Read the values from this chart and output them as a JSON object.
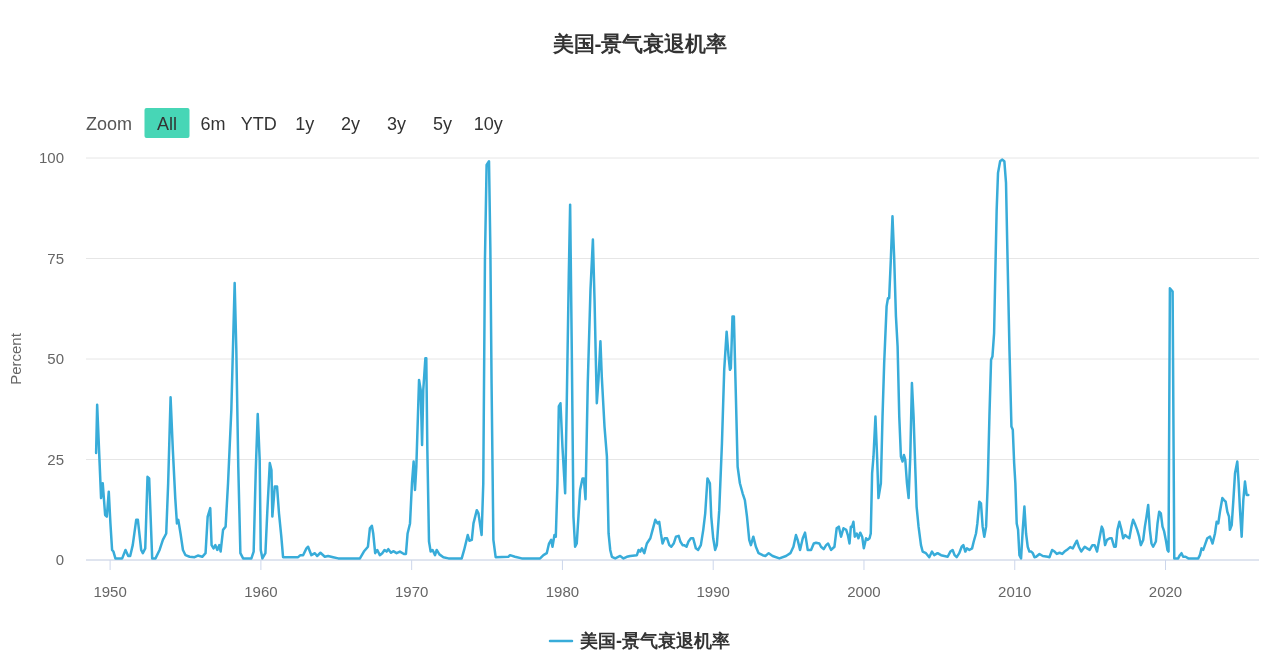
{
  "chart_data": {
    "type": "line",
    "title": "美国-景气衰退机率",
    "ylabel": "Percent",
    "annotations": [
      "Zoom",
      "All",
      "6m",
      "YTD",
      "1y",
      "2y",
      "3y",
      "5y",
      "10y"
    ],
    "xlim": [
      1948.4,
      2026.2
    ],
    "ylim": [
      0,
      100
    ],
    "xticks": [
      1950,
      1960,
      1970,
      1980,
      1990,
      2000,
      2010,
      2020
    ],
    "yticks": [
      0,
      25,
      50,
      75,
      100
    ],
    "grid": "y",
    "legend": "bottom",
    "x": [
      1949.07,
      1949.14,
      1949.4,
      1949.51,
      1949.67,
      1949.78,
      1949.91,
      1950.02,
      1950.13,
      1950.22,
      1950.35,
      1950.8,
      1951.02,
      1951.2,
      1951.33,
      1951.5,
      1951.73,
      1951.84,
      1952.06,
      1952.17,
      1952.33,
      1952.48,
      1952.59,
      1952.79,
      1953.01,
      1953.28,
      1953.5,
      1953.72,
      1953.85,
      1954.01,
      1954.16,
      1954.32,
      1954.43,
      1954.52,
      1954.67,
      1954.83,
      1955.0,
      1955.27,
      1955.6,
      1955.82,
      1956.11,
      1956.33,
      1956.47,
      1956.64,
      1956.73,
      1956.86,
      1956.98,
      1957.11,
      1957.24,
      1957.33,
      1957.49,
      1957.66,
      1957.82,
      1958.04,
      1958.26,
      1958.37,
      1958.5,
      1958.64,
      1958.82,
      1959.37,
      1959.52,
      1959.66,
      1959.79,
      1959.92,
      1959.99,
      1960.1,
      1960.3,
      1960.43,
      1960.59,
      1960.7,
      1960.76,
      1960.92,
      1961.07,
      1961.2,
      1961.35,
      1961.47,
      1962.47,
      1962.62,
      1962.8,
      1963.02,
      1963.13,
      1963.35,
      1963.58,
      1963.73,
      1963.95,
      1964.24,
      1964.46,
      1964.79,
      1965.13,
      1966.57,
      1966.83,
      1967.1,
      1967.23,
      1967.36,
      1967.45,
      1967.58,
      1967.72,
      1967.89,
      1968.05,
      1968.2,
      1968.34,
      1968.45,
      1968.63,
      1968.78,
      1969.0,
      1969.22,
      1969.49,
      1969.62,
      1969.73,
      1969.89,
      1970.02,
      1970.13,
      1970.22,
      1970.31,
      1970.49,
      1970.6,
      1970.69,
      1970.77,
      1970.91,
      1970.97,
      1971.04,
      1971.15,
      1971.26,
      1971.39,
      1971.55,
      1971.66,
      1971.84,
      1972.1,
      1972.44,
      1973.32,
      1973.48,
      1973.72,
      1973.83,
      1973.99,
      1974.1,
      1974.32,
      1974.43,
      1974.64,
      1974.75,
      1974.86,
      1974.97,
      1975.13,
      1975.22,
      1975.3,
      1975.42,
      1975.57,
      1976.41,
      1976.52,
      1976.85,
      1977.3,
      1978.52,
      1978.74,
      1978.96,
      1979.11,
      1979.25,
      1979.34,
      1979.47,
      1979.56,
      1979.67,
      1979.76,
      1979.87,
      1980.0,
      1980.18,
      1980.29,
      1980.42,
      1980.51,
      1980.62,
      1980.73,
      1980.84,
      1980.95,
      1981.17,
      1981.33,
      1981.42,
      1981.53,
      1981.68,
      1981.86,
      1982.02,
      1982.13,
      1982.21,
      1982.28,
      1982.39,
      1982.52,
      1982.61,
      1982.79,
      1982.95,
      1983.06,
      1983.17,
      1983.28,
      1983.5,
      1983.83,
      1984.05,
      1984.27,
      1984.5,
      1984.94,
      1985.05,
      1985.16,
      1985.27,
      1985.43,
      1985.6,
      1985.83,
      1985.98,
      1986.16,
      1986.31,
      1986.42,
      1986.53,
      1986.64,
      1986.78,
      1986.94,
      1987.09,
      1987.22,
      1987.38,
      1987.53,
      1987.71,
      1987.82,
      1987.97,
      1988.07,
      1988.23,
      1988.36,
      1988.52,
      1988.67,
      1988.85,
      1989.0,
      1989.18,
      1989.34,
      1989.47,
      1989.62,
      1989.78,
      1989.87,
      1990.0,
      1990.13,
      1990.24,
      1990.4,
      1990.58,
      1990.73,
      1990.89,
      1991.02,
      1991.11,
      1991.17,
      1991.28,
      1991.37,
      1991.51,
      1991.62,
      1991.77,
      1991.95,
      1992.1,
      1992.24,
      1992.39,
      1992.5,
      1992.66,
      1992.83,
      1993.01,
      1993.28,
      1993.46,
      1993.68,
      1993.94,
      1994.39,
      1994.83,
      1995.12,
      1995.32,
      1995.49,
      1995.6,
      1995.76,
      1995.94,
      1996.09,
      1996.27,
      1996.49,
      1996.67,
      1996.82,
      1997.04,
      1997.15,
      1997.33,
      1997.49,
      1997.62,
      1997.82,
      1998.04,
      1998.19,
      1998.33,
      1998.48,
      1998.64,
      1998.82,
      1998.93,
      1999.04,
      1999.13,
      1999.21,
      1999.3,
      1999.39,
      1999.52,
      1999.63,
      1999.75,
      1999.88,
      1999.99,
      2000.14,
      2000.25,
      2000.37,
      2000.45,
      2000.54,
      2000.63,
      2000.76,
      2000.87,
      2000.96,
      2001.12,
      2001.23,
      2001.34,
      2001.5,
      2001.59,
      2001.67,
      2001.78,
      2001.89,
      2002.0,
      2002.12,
      2002.23,
      2002.34,
      2002.45,
      2002.56,
      2002.65,
      2002.74,
      2002.85,
      2002.96,
      2003.07,
      2003.18,
      2003.29,
      2003.4,
      2003.49,
      2003.62,
      2003.78,
      2003.89,
      2004.11,
      2004.33,
      2004.51,
      2004.66,
      2004.88,
      2005.11,
      2005.33,
      2005.55,
      2005.73,
      2005.88,
      2006.01,
      2006.15,
      2006.32,
      2006.48,
      2006.59,
      2006.72,
      2006.83,
      2006.99,
      2007.17,
      2007.28,
      2007.43,
      2007.52,
      2007.65,
      2007.76,
      2007.87,
      2007.98,
      2008.1,
      2008.21,
      2008.32,
      2008.43,
      2008.52,
      2008.63,
      2008.72,
      2008.8,
      2008.89,
      2009.03,
      2009.16,
      2009.31,
      2009.42,
      2009.51,
      2009.65,
      2009.78,
      2009.87,
      2009.96,
      2010.04,
      2010.13,
      2010.22,
      2010.31,
      2010.42,
      2010.53,
      2010.64,
      2010.75,
      2010.86,
      2010.97,
      2011.09,
      2011.2,
      2011.31,
      2011.42,
      2011.64,
      2011.86,
      2012.19,
      2012.3,
      2012.48,
      2012.64,
      2012.79,
      2012.97,
      2013.15,
      2013.3,
      2013.52,
      2013.68,
      2013.85,
      2013.96,
      2014.12,
      2014.25,
      2014.41,
      2014.64,
      2014.8,
      2014.97,
      2015.15,
      2015.3,
      2015.46,
      2015.64,
      2015.77,
      2015.86,
      2015.99,
      2016.12,
      2016.3,
      2016.43,
      2016.59,
      2016.7,
      2016.81,
      2016.94,
      2017.08,
      2017.19,
      2017.32,
      2017.45,
      2017.6,
      2017.74,
      2017.85,
      2017.96,
      2018.12,
      2018.25,
      2018.36,
      2018.52,
      2018.63,
      2018.74,
      2018.85,
      2018.96,
      2019.07,
      2019.18,
      2019.36,
      2019.47,
      2019.58,
      2019.69,
      2019.8,
      2019.91,
      2020.02,
      2020.13,
      2020.2,
      2020.29,
      2020.47,
      2020.58,
      2020.84,
      2020.95,
      2021.06,
      2021.17,
      2021.33,
      2021.51,
      2022.17,
      2022.28,
      2022.39,
      2022.5,
      2022.61,
      2022.77,
      2022.95,
      2023.12,
      2023.28,
      2023.39,
      2023.5,
      2023.61,
      2023.77,
      2023.88,
      2023.99,
      2024.1,
      2024.21,
      2024.27,
      2024.39,
      2024.5,
      2024.61,
      2024.76,
      2024.85,
      2024.94,
      2025.05,
      2025.16,
      2025.27,
      2025.38,
      2025.49
    ],
    "series": [
      {
        "name": "美国-景气衰退机率",
        "color": "#38acd9",
        "values": [
          26.6,
          38.6,
          15.4,
          19.1,
          11.2,
          10.8,
          17.0,
          9.1,
          2.5,
          2.1,
          0.4,
          0.4,
          2.5,
          1.0,
          1.0,
          3.7,
          10.0,
          10.0,
          2.5,
          1.7,
          2.9,
          20.7,
          20.3,
          0.4,
          0.4,
          2.5,
          5.0,
          6.6,
          19.1,
          40.5,
          27.4,
          15.4,
          9.1,
          10.0,
          6.6,
          2.5,
          1.2,
          0.8,
          0.7,
          1.1,
          0.8,
          1.7,
          10.8,
          12.9,
          3.7,
          2.9,
          3.7,
          2.5,
          3.7,
          2.1,
          7.5,
          8.3,
          19.1,
          37.3,
          68.9,
          52.3,
          23.2,
          1.7,
          0.4,
          0.4,
          2.1,
          22.4,
          36.3,
          24.9,
          2.5,
          0.4,
          1.7,
          12.4,
          24.1,
          22.4,
          10.8,
          18.3,
          18.3,
          11.6,
          6.0,
          0.7,
          0.7,
          1.2,
          1.2,
          2.9,
          3.3,
          1.2,
          1.7,
          1.0,
          1.8,
          0.8,
          1.0,
          0.7,
          0.4,
          0.4,
          2.1,
          3.3,
          7.9,
          8.5,
          6.6,
          1.7,
          2.5,
          1.2,
          1.7,
          2.5,
          2.1,
          2.7,
          1.8,
          2.2,
          1.7,
          2.1,
          1.5,
          1.5,
          6.6,
          9.1,
          19.1,
          24.5,
          17.4,
          23.2,
          44.8,
          42.3,
          28.6,
          42.3,
          50.2,
          50.2,
          27.4,
          4.6,
          2.1,
          2.5,
          1.2,
          2.5,
          1.4,
          0.7,
          0.4,
          0.4,
          2.5,
          6.2,
          4.8,
          5.0,
          9.1,
          12.4,
          11.6,
          6.2,
          19.1,
          74.7,
          98.3,
          99.2,
          77.2,
          44.0,
          5.0,
          0.7,
          0.8,
          1.2,
          0.8,
          0.4,
          0.4,
          1.2,
          1.7,
          4.1,
          5.0,
          3.3,
          6.2,
          5.8,
          19.1,
          38.2,
          39.0,
          28.2,
          16.6,
          39.8,
          70.5,
          88.4,
          52.3,
          10.8,
          3.3,
          4.1,
          17.4,
          20.3,
          20.3,
          15.1,
          44.0,
          67.2,
          79.7,
          64.7,
          50.6,
          39.0,
          44.8,
          54.4,
          45.6,
          33.2,
          25.7,
          6.6,
          2.5,
          0.8,
          0.4,
          1.0,
          0.4,
          0.8,
          1.0,
          1.2,
          2.5,
          2.1,
          2.9,
          1.7,
          4.1,
          5.4,
          7.5,
          10.0,
          9.1,
          9.5,
          6.6,
          4.1,
          5.4,
          5.4,
          3.7,
          3.3,
          4.1,
          5.8,
          6.0,
          4.6,
          3.7,
          3.7,
          3.3,
          4.6,
          5.4,
          5.4,
          2.9,
          2.5,
          3.7,
          7.5,
          11.6,
          20.3,
          19.1,
          10.8,
          5.4,
          2.5,
          3.7,
          12.4,
          29.0,
          47.3,
          56.8,
          50.6,
          47.3,
          47.7,
          60.6,
          60.6,
          39.8,
          23.2,
          19.1,
          16.6,
          14.9,
          10.8,
          5.0,
          3.7,
          5.8,
          3.3,
          1.7,
          1.2,
          1.0,
          1.7,
          1.0,
          0.4,
          1.0,
          1.7,
          3.3,
          6.2,
          5.0,
          2.5,
          5.4,
          6.8,
          2.5,
          2.5,
          4.1,
          4.3,
          4.1,
          3.3,
          2.7,
          3.7,
          4.1,
          2.5,
          3.3,
          7.9,
          8.3,
          5.8,
          7.9,
          7.5,
          6.2,
          4.1,
          8.3,
          8.3,
          9.5,
          5.8,
          6.6,
          5.4,
          6.8,
          5.8,
          2.9,
          5.4,
          5.0,
          5.4,
          6.6,
          21.6,
          25.7,
          35.7,
          25.7,
          15.4,
          19.1,
          35.7,
          49.0,
          63.1,
          65.1,
          65.1,
          74.7,
          85.5,
          75.5,
          60.6,
          53.1,
          35.7,
          25.7,
          24.5,
          26.1,
          24.9,
          19.1,
          15.4,
          25.7,
          44.0,
          35.7,
          23.2,
          13.3,
          8.3,
          3.7,
          2.1,
          1.7,
          0.7,
          2.1,
          1.2,
          1.7,
          1.2,
          1.0,
          0.8,
          2.1,
          2.5,
          1.2,
          0.7,
          1.7,
          3.3,
          3.7,
          2.1,
          2.9,
          2.5,
          2.9,
          4.6,
          6.6,
          9.1,
          14.5,
          14.1,
          8.3,
          5.8,
          8.3,
          19.1,
          35.7,
          49.8,
          50.6,
          56.4,
          73.0,
          87.1,
          96.3,
          99.2,
          99.6,
          99.2,
          93.8,
          77.2,
          52.3,
          33.2,
          32.4,
          24.1,
          19.1,
          9.1,
          7.5,
          1.2,
          0.4,
          7.5,
          13.3,
          6.6,
          3.3,
          2.1,
          2.1,
          1.7,
          0.7,
          0.8,
          1.5,
          1.0,
          0.8,
          0.7,
          2.5,
          2.1,
          1.5,
          1.8,
          1.5,
          2.1,
          2.7,
          3.2,
          2.9,
          3.7,
          4.8,
          3.3,
          2.1,
          3.3,
          2.9,
          2.5,
          3.7,
          3.7,
          2.1,
          5.8,
          8.3,
          7.5,
          3.7,
          5.0,
          5.4,
          5.4,
          3.3,
          3.3,
          7.5,
          9.5,
          7.5,
          5.4,
          6.2,
          5.8,
          5.4,
          8.3,
          10.0,
          9.1,
          7.5,
          5.8,
          3.7,
          5.0,
          8.3,
          10.8,
          13.7,
          7.5,
          4.1,
          3.3,
          4.6,
          9.1,
          12.0,
          11.6,
          8.3,
          7.1,
          5.0,
          2.5,
          2.1,
          67.6,
          66.8,
          0.4,
          0.4,
          1.2,
          1.7,
          0.8,
          0.8,
          0.4,
          0.4,
          1.2,
          2.9,
          2.5,
          3.7,
          5.4,
          5.8,
          4.1,
          6.6,
          9.5,
          9.1,
          12.0,
          15.4,
          14.9,
          14.5,
          12.0,
          10.8,
          7.5,
          8.7,
          14.9,
          21.6,
          24.5,
          19.1,
          12.4,
          5.8,
          14.9,
          19.5,
          16.2,
          16.2
        ]
      }
    ]
  }
}
